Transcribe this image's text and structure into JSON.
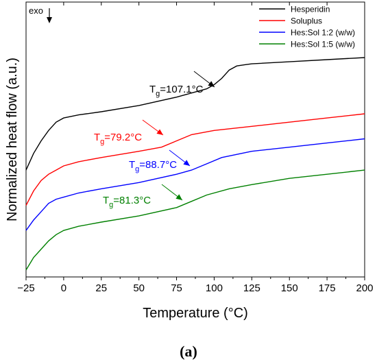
{
  "chart_data": {
    "type": "line",
    "xlabel": "Temperature (°C)",
    "ylabel": "Normalized heat flow (a.u.)",
    "xlim": [
      -25,
      200
    ],
    "xticks": [
      -25,
      0,
      25,
      50,
      75,
      100,
      125,
      150,
      175,
      200
    ],
    "exo_label": "exo",
    "legend_position": "top-right",
    "series": [
      {
        "name": "Hesperidin",
        "color": "#000000",
        "x": [
          -25,
          -20,
          -15,
          -10,
          -5,
          0,
          10,
          25,
          50,
          75,
          95,
          100,
          105,
          110,
          115,
          120,
          125,
          150,
          175,
          200
        ],
        "y": [
          0.5,
          0.58,
          0.64,
          0.69,
          0.73,
          0.75,
          0.765,
          0.78,
          0.81,
          0.85,
          0.89,
          0.91,
          0.94,
          0.98,
          1.0,
          1.005,
          1.01,
          1.02,
          1.03,
          1.04
        ]
      },
      {
        "name": "Soluplus",
        "color": "#ff0000",
        "x": [
          -25,
          -20,
          -15,
          -10,
          -5,
          0,
          10,
          25,
          50,
          65,
          75,
          85,
          100,
          125,
          150,
          175,
          200
        ],
        "y": [
          0.33,
          0.4,
          0.45,
          0.48,
          0.5,
          0.52,
          0.54,
          0.56,
          0.59,
          0.61,
          0.64,
          0.67,
          0.69,
          0.71,
          0.73,
          0.75,
          0.77
        ]
      },
      {
        "name": "Hes:Sol 1:2 (w/w)",
        "color": "#0000ff",
        "x": [
          -25,
          -20,
          -15,
          -10,
          -5,
          0,
          10,
          25,
          50,
          75,
          85,
          95,
          105,
          125,
          150,
          175,
          200
        ],
        "y": [
          0.21,
          0.26,
          0.3,
          0.34,
          0.36,
          0.37,
          0.39,
          0.41,
          0.44,
          0.48,
          0.5,
          0.53,
          0.56,
          0.59,
          0.61,
          0.63,
          0.65
        ]
      },
      {
        "name": "Hes:Sol 1:5 (w/w)",
        "color": "#008000",
        "x": [
          -25,
          -20,
          -15,
          -10,
          -5,
          0,
          10,
          25,
          50,
          75,
          85,
          95,
          110,
          125,
          150,
          175,
          200
        ],
        "y": [
          0.02,
          0.08,
          0.12,
          0.16,
          0.19,
          0.21,
          0.23,
          0.25,
          0.28,
          0.32,
          0.35,
          0.38,
          0.41,
          0.43,
          0.46,
          0.48,
          0.5
        ]
      }
    ],
    "annotations": [
      {
        "base": "T",
        "sub": "g",
        "rest": "=107.1°C",
        "color": "#000000",
        "x": 107.1
      },
      {
        "base": "T",
        "sub": "g",
        "rest": "=79.2°C",
        "color": "#ff0000",
        "x": 79.2
      },
      {
        "base": "T",
        "sub": "g",
        "rest": "=88.7°C",
        "color": "#0000ff",
        "x": 88.7
      },
      {
        "base": "T",
        "sub": "g",
        "rest": "=81.3°C",
        "color": "#008000",
        "x": 81.3
      }
    ]
  },
  "panel_label": "(a)"
}
